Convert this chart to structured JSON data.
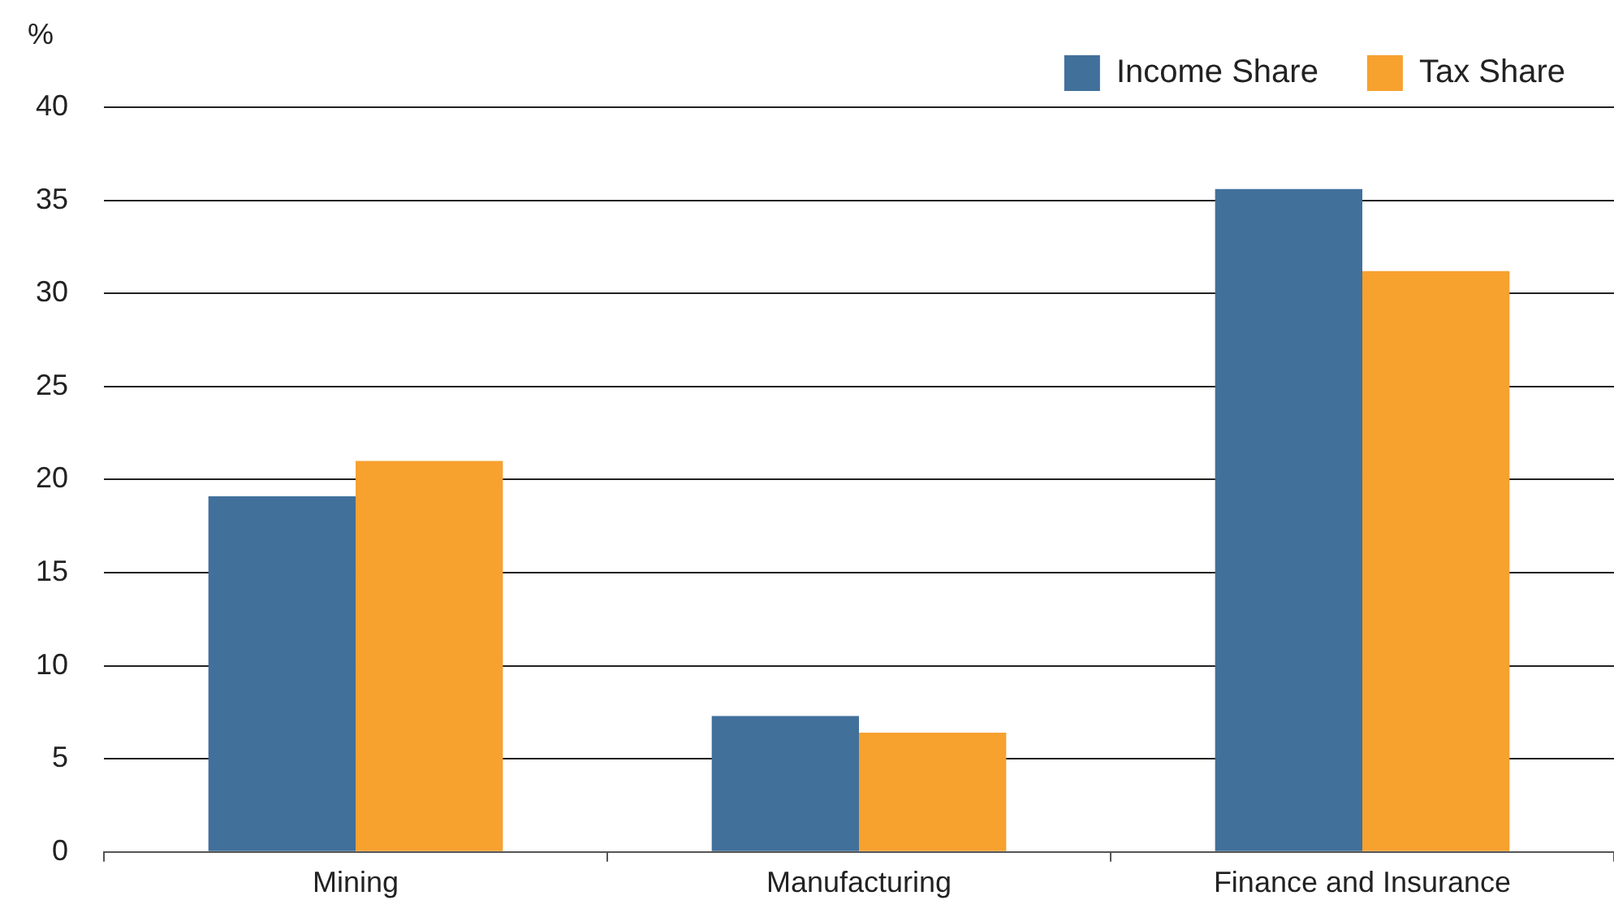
{
  "chart_data": {
    "type": "bar",
    "ylabel": "%",
    "categories": [
      "Mining",
      "Manufacturing",
      "Finance and Insurance"
    ],
    "series": [
      {
        "name": "Income Share",
        "color": "#41709b",
        "values": [
          19.1,
          7.3,
          35.6
        ]
      },
      {
        "name": "Tax Share",
        "color": "#f7a12f",
        "values": [
          21.0,
          6.4,
          31.2
        ]
      }
    ],
    "ylim": [
      0,
      40
    ],
    "yticks": [
      0,
      5,
      10,
      15,
      20,
      25,
      30,
      35,
      40
    ],
    "grid": "y",
    "legend": "top right"
  }
}
